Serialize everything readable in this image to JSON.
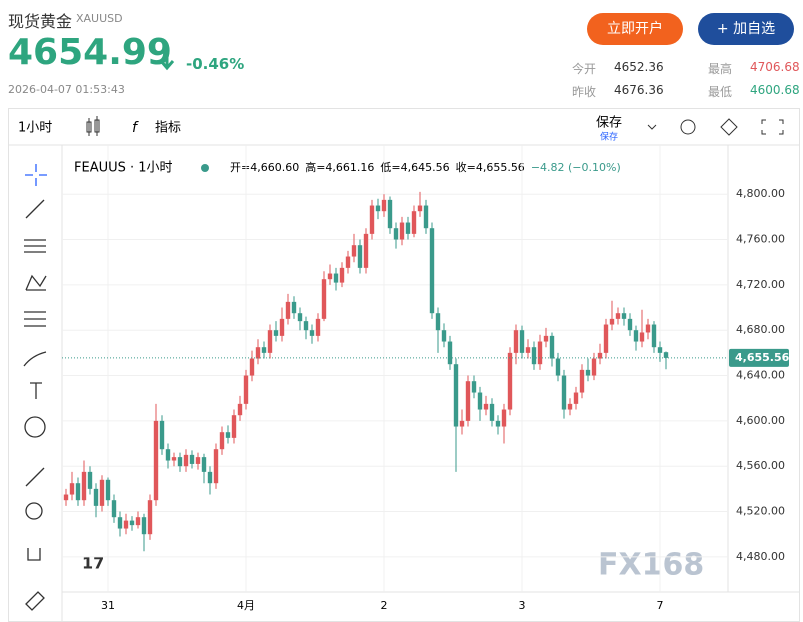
{
  "header": {
    "title": "现货黄金",
    "symbol": "XAUUSD",
    "price": "4654.99",
    "change": "-0.46%",
    "timestamp": "2026-04-07 01:53:43",
    "buttons": [
      "立即开户",
      "+ 加自选"
    ],
    "stats": [
      {
        "label": "今开",
        "value": "4652.36"
      },
      {
        "label": "最高",
        "value": "4706.68"
      },
      {
        "label": "昨收",
        "value": "4676.36"
      },
      {
        "label": "最低",
        "value": "4600.68"
      }
    ]
  },
  "toolbar": {
    "interval": "1小时",
    "indicators": "指标",
    "save": "保存",
    "save_sub": "保存"
  },
  "watermark": "FX168",
  "chart_data": {
    "type": "candlestick",
    "title": "FEAUUS · 1小时",
    "legend": {
      "open": "开=4,660.60",
      "high": "高=4,661.16",
      "low": "低=4,645.56",
      "close": "收=4,655.56",
      "change": "−4.82 (−0.10%)"
    },
    "categories": [
      null,
      null,
      null,
      null,
      null,
      null,
      null,
      "31",
      null,
      null,
      null,
      null,
      null,
      null,
      null,
      null,
      null,
      null,
      null,
      null,
      null,
      null,
      null,
      null,
      null,
      null,
      null,
      null,
      null,
      null,
      "4月",
      null,
      null,
      null,
      null,
      null,
      null,
      null,
      null,
      null,
      null,
      null,
      null,
      null,
      null,
      null,
      null,
      null,
      null,
      null,
      null,
      null,
      null,
      "2",
      null,
      null,
      null,
      null,
      null,
      null,
      null,
      null,
      null,
      null,
      null,
      null,
      null,
      null,
      null,
      null,
      null,
      null,
      null,
      null,
      null,
      null,
      "3",
      null,
      null,
      null,
      null,
      null,
      null,
      null,
      null,
      null,
      null,
      null,
      null,
      null,
      null,
      null,
      null,
      null,
      null,
      null,
      null,
      null,
      null,
      "7",
      null
    ],
    "open": [
      4530,
      4535,
      4545,
      4530,
      4555,
      4540,
      4525,
      4548,
      4530,
      4515,
      4505,
      4512,
      4508,
      4515,
      4500,
      4530,
      4600,
      4575,
      4565,
      4568,
      4560,
      4570,
      4562,
      4568,
      4555,
      4545,
      4575,
      4590,
      4585,
      4605,
      4615,
      4640,
      4655,
      4665,
      4660,
      4680,
      4675,
      4690,
      4705,
      4695,
      4688,
      4680,
      4675,
      4690,
      4725,
      4730,
      4722,
      4735,
      4745,
      4755,
      4735,
      4765,
      4790,
      4785,
      4795,
      4770,
      4760,
      4775,
      4765,
      4785,
      4790,
      4770,
      4695,
      4680,
      4670,
      4650,
      4595,
      4600,
      4635,
      4625,
      4610,
      4615,
      4600,
      4595,
      4610,
      4660,
      4680,
      4660,
      4665,
      4650,
      4670,
      4675,
      4655,
      4640,
      4610,
      4615,
      4625,
      4645,
      4640,
      4655,
      4660,
      4685,
      4690,
      4695,
      4690,
      4680,
      4670,
      4678,
      4685,
      4665,
      4660.6
    ],
    "high": [
      4540,
      4555,
      4550,
      4565,
      4560,
      4545,
      4552,
      4550,
      4535,
      4520,
      4518,
      4516,
      4520,
      4518,
      4535,
      4615,
      4605,
      4580,
      4572,
      4572,
      4575,
      4574,
      4572,
      4571,
      4560,
      4580,
      4595,
      4596,
      4610,
      4622,
      4645,
      4662,
      4672,
      4670,
      4685,
      4688,
      4700,
      4712,
      4710,
      4700,
      4692,
      4685,
      4695,
      4732,
      4738,
      4735,
      4740,
      4750,
      4765,
      4760,
      4770,
      4795,
      4796,
      4800,
      4798,
      4775,
      4780,
      4780,
      4790,
      4802,
      4795,
      4775,
      4700,
      4686,
      4675,
      4655,
      4610,
      4640,
      4640,
      4630,
      4622,
      4620,
      4605,
      4615,
      4665,
      4685,
      4684,
      4672,
      4670,
      4676,
      4682,
      4678,
      4660,
      4645,
      4620,
      4630,
      4650,
      4655,
      4660,
      4668,
      4690,
      4706,
      4700,
      4700,
      4695,
      4684,
      4698,
      4690,
      4688,
      4670,
      4661.16
    ],
    "low": [
      4525,
      4530,
      4525,
      4525,
      4535,
      4515,
      4520,
      4525,
      4510,
      4498,
      4500,
      4503,
      4505,
      4485,
      4495,
      4525,
      4570,
      4558,
      4560,
      4555,
      4555,
      4558,
      4557,
      4545,
      4535,
      4540,
      4570,
      4580,
      4580,
      4600,
      4610,
      4635,
      4650,
      4655,
      4655,
      4670,
      4670,
      4685,
      4690,
      4680,
      4672,
      4668,
      4670,
      4688,
      4720,
      4715,
      4718,
      4730,
      4740,
      4730,
      4730,
      4760,
      4778,
      4780,
      4765,
      4752,
      4755,
      4760,
      4762,
      4780,
      4765,
      4690,
      4660,
      4665,
      4645,
      4555,
      4588,
      4595,
      4620,
      4600,
      4605,
      4595,
      4588,
      4580,
      4605,
      4650,
      4655,
      4655,
      4645,
      4645,
      4665,
      4648,
      4635,
      4602,
      4605,
      4610,
      4620,
      4635,
      4636,
      4650,
      4655,
      4680,
      4685,
      4684,
      4675,
      4662,
      4665,
      4672,
      4660,
      4652,
      4645.56
    ],
    "close": [
      4535,
      4545,
      4530,
      4555,
      4540,
      4525,
      4548,
      4530,
      4515,
      4505,
      4512,
      4508,
      4515,
      4500,
      4530,
      4600,
      4575,
      4565,
      4568,
      4560,
      4570,
      4562,
      4568,
      4555,
      4545,
      4575,
      4590,
      4585,
      4605,
      4615,
      4640,
      4655,
      4665,
      4660,
      4680,
      4675,
      4690,
      4705,
      4695,
      4688,
      4680,
      4675,
      4690,
      4725,
      4730,
      4722,
      4735,
      4745,
      4755,
      4735,
      4765,
      4790,
      4785,
      4795,
      4770,
      4760,
      4775,
      4765,
      4785,
      4790,
      4770,
      4695,
      4680,
      4670,
      4650,
      4595,
      4600,
      4635,
      4625,
      4610,
      4615,
      4600,
      4595,
      4610,
      4660,
      4680,
      4660,
      4665,
      4650,
      4670,
      4675,
      4655,
      4640,
      4610,
      4615,
      4625,
      4645,
      4640,
      4655,
      4660,
      4685,
      4690,
      4695,
      4690,
      4680,
      4670,
      4678,
      4685,
      4665,
      4660,
      4655.56
    ],
    "up_color": "#e0575a",
    "down_color": "#3a9a8b",
    "last_price": {
      "value": 4655.56,
      "label": "4,655.56"
    },
    "last_color": "#3a9a8b",
    "ylim": [
      4449,
      4839
    ],
    "yticks": [
      {
        "value": 4480,
        "label": "4,480.00"
      },
      {
        "value": 4520,
        "label": "4,520.00"
      },
      {
        "value": 4560,
        "label": "4,560.00"
      },
      {
        "value": 4600,
        "label": "4,600.00"
      },
      {
        "value": 4640,
        "label": "4,640.00"
      },
      {
        "value": 4680,
        "label": "4,680.00"
      },
      {
        "value": 4720,
        "label": "4,720.00"
      },
      {
        "value": 4760,
        "label": "4,760.00"
      },
      {
        "value": 4800,
        "label": "4,800.00"
      }
    ],
    "grid": true
  }
}
